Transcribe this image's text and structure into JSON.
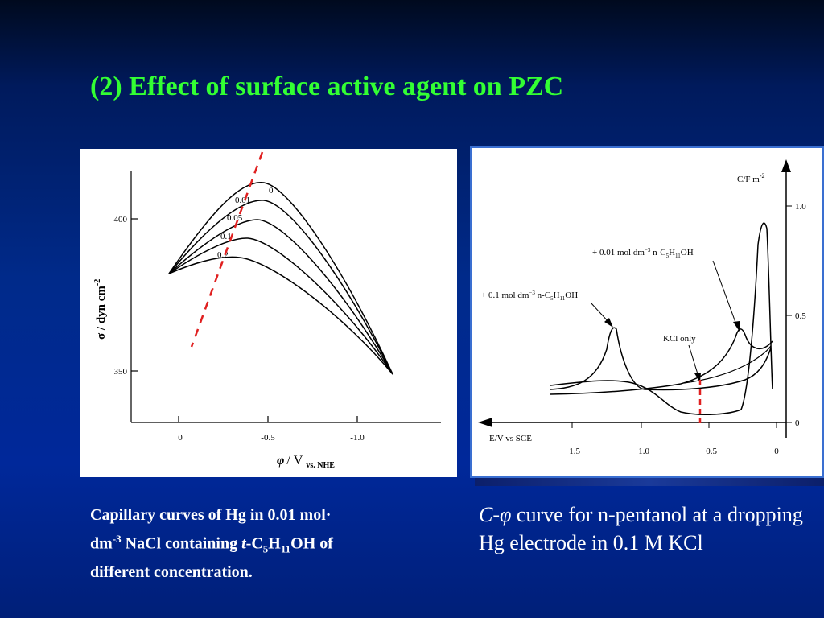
{
  "slide": {
    "title": "(2) Effect of surface active agent on PZC"
  },
  "left_figure": {
    "y_axis_label": "σ / dyn cm",
    "y_axis_label_sup": "-2",
    "x_axis_label_sym": "φ",
    "x_axis_label_unit": "/ V",
    "x_axis_label_sub": "vs. NHE",
    "y_ticks": [
      "400",
      "350"
    ],
    "x_ticks": [
      "0",
      "-0.5",
      "-1.0"
    ],
    "curve_labels": [
      "0",
      "0.01",
      "0.05",
      "0.1",
      "0.2"
    ]
  },
  "right_figure": {
    "y_axis_label": "C/F m",
    "y_axis_label_sup": "-2",
    "x_axis_label": "E/V vs SCE",
    "y_ticks": [
      "1.0",
      "0.5",
      "0"
    ],
    "x_ticks": [
      "−1.5",
      "−1.0",
      "−0.5",
      "0"
    ],
    "annotation_1_pre": "+ 0.01 mol dm",
    "annotation_1_sup": "−3",
    "annotation_1_post": " n-C",
    "annotation_1_sub1": "5",
    "annotation_1_mid": "H",
    "annotation_1_sub2": "11",
    "annotation_1_end": "OH",
    "annotation_2_pre": "+ 0.1 mol dm",
    "annotation_2_sup": "−3",
    "annotation_2_post": " n-C",
    "annotation_2_sub1": "5",
    "annotation_2_mid": "H",
    "annotation_2_sub2": "11",
    "annotation_2_end": "OH",
    "annotation_3": "KCl only"
  },
  "captions": {
    "left_1": "Capillary curves of  Hg in 0.01 mol·",
    "left_2": "dm",
    "left_2_sup": "-3",
    "left_3": " NaCl containing ",
    "left_t": "t",
    "left_4": "-C",
    "left_sub1": "5",
    "left_5": "H",
    "left_sub2": "11",
    "left_6": "OH of",
    "left_7": "different concentration.",
    "right_C": "C",
    "right_dash": "-",
    "right_phi": "φ",
    "right_rest": " curve for n-pentanol at a dropping Hg electrode in 0.1 M KCl"
  },
  "colors": {
    "title": "#33ff33",
    "dashed_line": "#e02020",
    "caption": "#ffffff"
  }
}
